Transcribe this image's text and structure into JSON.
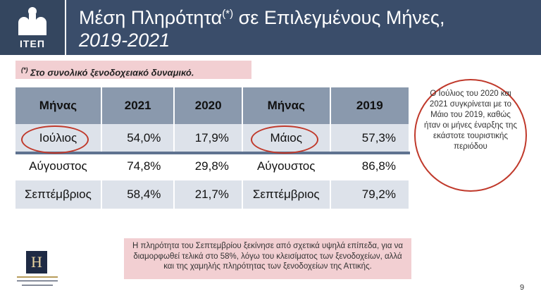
{
  "header": {
    "logo_text": "ΙΤΕΠ",
    "title_main": "Μέση Πληρότητα",
    "title_sup": "(*)",
    "title_rest": " σε Επιλεγμένους Μήνες,",
    "title_line2": "2019-2021",
    "colors": {
      "background": "#3a4d6a",
      "logo_box": "#34465f"
    }
  },
  "note": {
    "sup": "(*)",
    "text": " Στο συνολικό ξενοδοχειακό δυναμικό."
  },
  "table": {
    "headers": [
      "Μήνας",
      "2021",
      "2020",
      "Μήνας",
      "2019"
    ],
    "rows": [
      [
        "Ιούλιος",
        "54,0%",
        "17,9%",
        "Μάιος",
        "57,3%"
      ],
      [
        "Αύγουστος",
        "74,8%",
        "29,8%",
        "Αύγουστος",
        "86,8%"
      ],
      [
        "Σεπτέμβριος",
        "58,4%",
        "21,7%",
        "Σεπτέμβριος",
        "79,2%"
      ]
    ]
  },
  "circle_note": {
    "text": "Ο Ιούλιος του 2020 και 2021 συγκρίνεται με το Μάιο του 2019, καθώς ήταν οι μήνες έναρξης της εκάστοτε τουριστικής περιόδου"
  },
  "bottom_note": {
    "text": "Η πληρότητα του Σεπτεμβρίου ξεκίνησε από σχετικά υψηλά επίπεδα, για να διαμορφωθεί τελικά στο 58%, λόγω του κλεισίματος των ξενοδοχείων, αλλά και της χαμηλής πληρότητας των ξενοδοχείων της Αττικής."
  },
  "hotel_logo": {
    "letter": "H"
  },
  "page_number": "9",
  "accent_colors": {
    "note_bg": "#f2cfd2",
    "oval": "#c0392b",
    "table_header": "#8a99ad",
    "row_alt": "#dde2ea"
  }
}
